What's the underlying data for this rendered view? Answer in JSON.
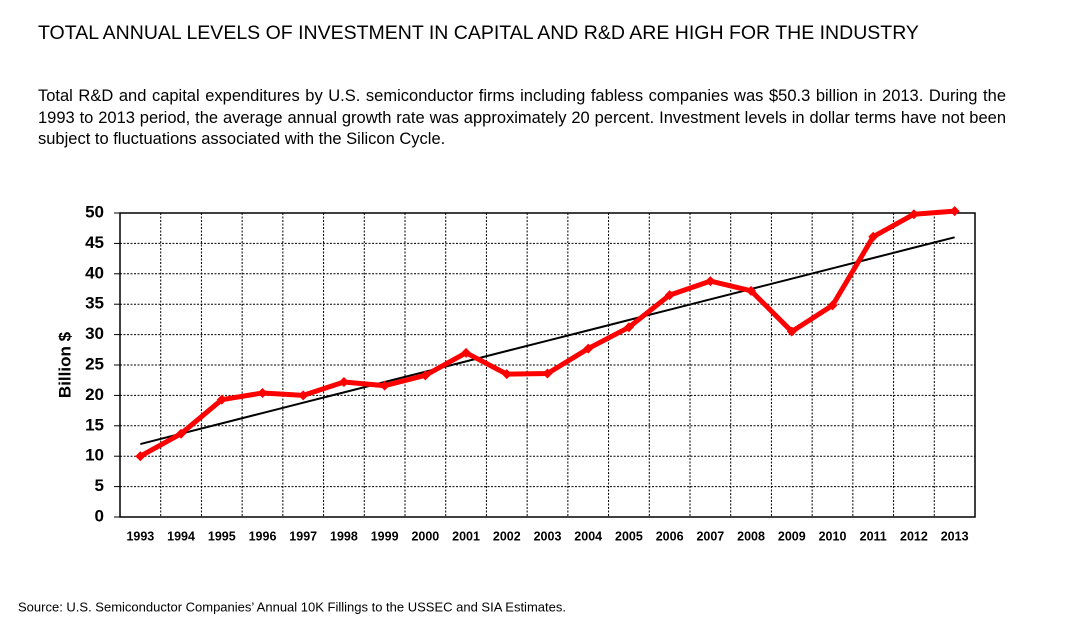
{
  "chart_data": {
    "type": "line",
    "title": "TOTAL ANNUAL LEVELS OF INVESTMENT IN CAPITAL AND R&D ARE HIGH FOR THE INDUSTRY",
    "subtitle": "Total R&D and capital expenditures by U.S. semiconductor firms including fabless companies was $50.3 billion in 2013. During the 1993 to 2013 period, the average annual growth rate was approximately 20 percent. Investment levels in dollar terms have not been subject to fluctuations associated with the Silicon Cycle.",
    "y_label": "Billion $",
    "source": "Source: U.S. Semiconductor Companies’ Annual 10K Fillings to the USSEC and SIA Estimates.",
    "categories": [
      "1993",
      "1994",
      "1995",
      "1996",
      "1997",
      "1998",
      "1999",
      "2000",
      "2001",
      "2002",
      "2003",
      "2004",
      "2005",
      "2006",
      "2007",
      "2008",
      "2009",
      "2010",
      "2011",
      "2012",
      "2013"
    ],
    "series": [
      {
        "color": "#ff0000",
        "values": [
          10,
          13.7,
          19.3,
          20.4,
          20,
          22.2,
          21.6,
          23.3,
          27,
          23.5,
          23.6,
          27.7,
          31.2,
          36.5,
          38.8,
          37.2,
          30.5,
          34.8,
          46.1,
          49.8,
          50.3
        ]
      },
      {
        "color": "#000000",
        "values": [
          12,
          13.7,
          15.4,
          17.1,
          18.8,
          20.5,
          22.2,
          23.9,
          25.6,
          27.3,
          29,
          30.7,
          32.4,
          34.1,
          35.8,
          37.5,
          39.2,
          40.9,
          42.6,
          44.3,
          46
        ]
      }
    ],
    "ylim": [
      0,
      50
    ],
    "yticks": [
      0,
      5,
      10,
      15,
      20,
      25,
      30,
      35,
      40,
      45,
      50
    ],
    "grid": true
  }
}
